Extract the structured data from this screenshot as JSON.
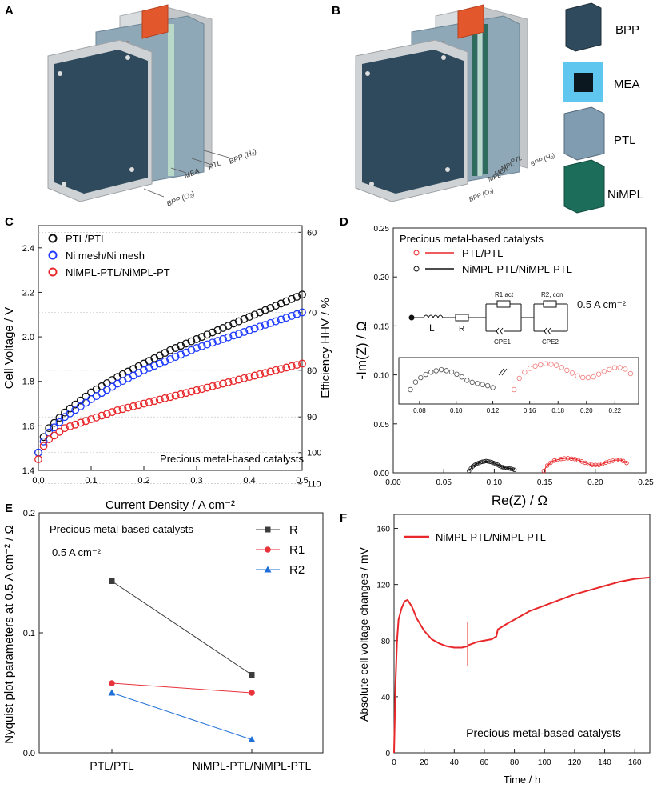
{
  "panels": {
    "A": {
      "letter": "A",
      "labels": [
        "BPP (H₂)",
        "PTL",
        "MEA",
        "BPP (O₂)"
      ]
    },
    "B": {
      "letter": "B",
      "labels": [
        "BPP (H₂)",
        "PTL",
        "MPL",
        "MEA",
        "MPL",
        "BPP (O₂)"
      ],
      "components": [
        "BPP",
        "MEA",
        "PTL",
        "NiMPL"
      ]
    },
    "C": {
      "letter": "C"
    },
    "D": {
      "letter": "D",
      "circuit": {
        "L": "L",
        "R": "R",
        "R1": "R1,act",
        "R2": "R2, con",
        "CPE1": "CPE1",
        "CPE2": "CPE2",
        "current": "0.5 A cm⁻²"
      }
    },
    "E": {
      "letter": "E",
      "note": "0.5 A cm⁻²"
    },
    "F": {
      "letter": "F"
    }
  },
  "colors": {
    "black": "#111111",
    "blue": "#1f3bff",
    "red": "#e8272a",
    "pink": "#f07a7a",
    "gray": "#4d4d4d",
    "e_R": "#3c3c3c",
    "e_R1": "#e8333b",
    "e_R2": "#1f6fd8",
    "plate": "#2e4a5c",
    "frame": "#cfd2d4",
    "copper": "#e3572c",
    "ptl": "#8fa8b8",
    "mea": "#9dc7c2"
  },
  "chart_data": [
    {
      "id": "C",
      "type": "scatter",
      "xlabel": "Current Density / A cm⁻²",
      "ylabel": "Cell Voltage / V",
      "y2label": "Efficiency HHV / %",
      "xlim": [
        0,
        0.5
      ],
      "ylim": [
        1.4,
        2.5
      ],
      "xticks": [
        "0.0",
        "0.1",
        "0.2",
        "0.3",
        "0.4",
        "0.5"
      ],
      "yticks": [
        "1.4",
        "1.6",
        "1.8",
        "2.0",
        "2.2",
        "2.4"
      ],
      "y2ticks": [
        "60",
        "70",
        "80",
        "90",
        "100",
        "110"
      ],
      "y2tick_voltages": [
        2.47,
        2.11,
        1.85,
        1.64,
        1.48,
        1.34
      ],
      "annotation": "Precious metal-based catalysts",
      "series": [
        {
          "name": "PTL/PTL",
          "color": "#111111",
          "x": [
            0,
            0.01,
            0.02,
            0.05,
            0.1,
            0.15,
            0.2,
            0.25,
            0.3,
            0.35,
            0.4,
            0.45,
            0.5
          ],
          "y": [
            1.48,
            1.55,
            1.59,
            1.66,
            1.75,
            1.82,
            1.88,
            1.94,
            1.99,
            2.04,
            2.09,
            2.14,
            2.19
          ]
        },
        {
          "name": "Ni mesh/Ni mesh",
          "color": "#1f3bff",
          "x": [
            0,
            0.01,
            0.02,
            0.05,
            0.1,
            0.15,
            0.2,
            0.25,
            0.3,
            0.35,
            0.4,
            0.45,
            0.5
          ],
          "y": [
            1.48,
            1.53,
            1.57,
            1.64,
            1.72,
            1.79,
            1.85,
            1.9,
            1.95,
            1.99,
            2.03,
            2.07,
            2.11
          ]
        },
        {
          "name": "NiMPL-PTL/NiMPL-PT",
          "color": "#e8272a",
          "x": [
            0,
            0.01,
            0.02,
            0.05,
            0.1,
            0.15,
            0.2,
            0.25,
            0.3,
            0.35,
            0.4,
            0.45,
            0.5
          ],
          "y": [
            1.45,
            1.51,
            1.54,
            1.59,
            1.63,
            1.67,
            1.7,
            1.73,
            1.76,
            1.79,
            1.82,
            1.85,
            1.88
          ]
        }
      ]
    },
    {
      "id": "D",
      "type": "scatter",
      "xlabel": "Re(Z) / Ω",
      "ylabel": "-Im(Z) / Ω",
      "xlim": [
        0,
        0.25
      ],
      "ylim": [
        0,
        0.25
      ],
      "xticks": [
        "0.00",
        "0.05",
        "0.10",
        "0.15",
        "0.20",
        "0.25"
      ],
      "yticks": [
        "0.00",
        "0.05",
        "0.10",
        "0.15",
        "0.20",
        "0.25"
      ],
      "legend_title": "Precious metal-based catalysts",
      "series": [
        {
          "name": "PTL/PTL",
          "color": "#e8272a",
          "x": [
            0.149,
            0.152,
            0.158,
            0.165,
            0.172,
            0.18,
            0.188,
            0.196,
            0.204,
            0.212,
            0.22,
            0.226,
            0.231
          ],
          "y": [
            0.002,
            0.007,
            0.012,
            0.014,
            0.015,
            0.014,
            0.011,
            0.008,
            0.008,
            0.011,
            0.013,
            0.013,
            0.01
          ]
        },
        {
          "name": "NiMPL-PTL/NiMPL-PTL",
          "color": "#111111",
          "x": [
            0.075,
            0.078,
            0.082,
            0.087,
            0.092,
            0.097,
            0.102,
            0.107,
            0.112,
            0.117,
            0.12
          ],
          "y": [
            0.002,
            0.006,
            0.009,
            0.011,
            0.012,
            0.011,
            0.009,
            0.006,
            0.005,
            0.004,
            0.003
          ]
        }
      ],
      "inset": {
        "xticks_left": [
          "0.08",
          "0.10",
          "0.12"
        ],
        "xticks_right": [
          "0.16",
          "0.18",
          "0.20",
          "0.22"
        ]
      }
    },
    {
      "id": "E",
      "type": "line",
      "categories": [
        "PTL/PTL",
        "NiMPL-PTL/NiMPL-PTL"
      ],
      "ylabel": "Nyquist plot parameters at 0.5 A cm⁻² / Ω",
      "ylim": [
        0,
        0.2
      ],
      "yticks": [
        "0.0",
        "0.1",
        "0.2"
      ],
      "annotation": "Precious metal-based catalysts",
      "series": [
        {
          "name": "R",
          "color": "#3c3c3c",
          "marker": "square",
          "values": [
            0.143,
            0.065
          ]
        },
        {
          "name": "R1",
          "color": "#e8333b",
          "marker": "circle",
          "values": [
            0.058,
            0.05
          ]
        },
        {
          "name": "R2",
          "color": "#1f6fd8",
          "marker": "triangle",
          "values": [
            0.05,
            0.011
          ]
        }
      ]
    },
    {
      "id": "F",
      "type": "line",
      "xlabel": "Time / h",
      "ylabel": "Absolute cell voltage changes / mV",
      "xlim": [
        0,
        170
      ],
      "ylim": [
        0,
        170
      ],
      "xticks": [
        "0",
        "20",
        "40",
        "60",
        "80",
        "100",
        "120",
        "140",
        "160"
      ],
      "yticks": [
        "0",
        "40",
        "80",
        "120",
        "160"
      ],
      "annotation": "Precious metal-based catalysts",
      "series": [
        {
          "name": "NiMPL-PTL/NiMPL-PTL",
          "color": "#e8272a",
          "x": [
            0,
            1,
            2,
            3,
            5,
            7,
            9,
            12,
            15,
            20,
            25,
            30,
            35,
            40,
            45,
            49,
            50,
            55,
            60,
            65,
            68,
            69,
            75,
            80,
            90,
            100,
            110,
            120,
            130,
            140,
            150,
            160,
            170
          ],
          "y": [
            0,
            50,
            80,
            95,
            103,
            108,
            109,
            104,
            96,
            87,
            81,
            78,
            76,
            75,
            75,
            76,
            77,
            79,
            80,
            81,
            83,
            88,
            92,
            95,
            101,
            105,
            109,
            113,
            116,
            119,
            122,
            124,
            125
          ]
        }
      ]
    }
  ]
}
